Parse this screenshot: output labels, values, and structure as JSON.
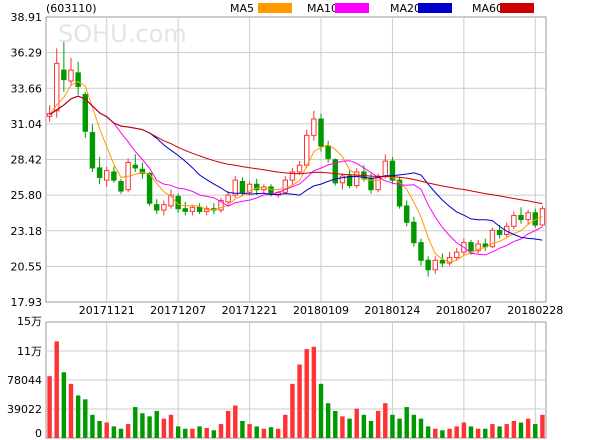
{
  "header": {
    "code_label": "(603110)",
    "watermark": "SOHU.com",
    "legend": [
      {
        "name": "MA5",
        "color": "#ff9900"
      },
      {
        "name": "MA10",
        "color": "#ff00ff"
      },
      {
        "name": "MA20",
        "color": "#0000cc"
      },
      {
        "name": "MA60",
        "color": "#cc0000"
      }
    ]
  },
  "colors": {
    "up": "#ff3333",
    "down": "#009900",
    "grid": "#cccccc",
    "frame": "#999999"
  },
  "chart_data": [
    {
      "type": "candlestick",
      "title": "",
      "yticks": [
        "38.91",
        "36.29",
        "33.66",
        "31.04",
        "28.42",
        "25.80",
        "23.18",
        "20.55",
        "17.93"
      ],
      "ylim": [
        17.93,
        38.91
      ],
      "xticks": [
        "20171121",
        "20171207",
        "20171221",
        "20180109",
        "20180124",
        "20180207",
        "20180228"
      ],
      "xtick_index": [
        8,
        18,
        28,
        38,
        48,
        58,
        68
      ],
      "grid": true,
      "legend_placement": "top-right",
      "candles": [
        [
          31.6,
          32.4,
          31.2,
          31.8
        ],
        [
          32.0,
          36.6,
          31.5,
          35.5
        ],
        [
          35.0,
          37.2,
          33.4,
          34.3
        ],
        [
          34.2,
          35.9,
          33.8,
          35.0
        ],
        [
          34.8,
          35.6,
          33.2,
          33.8
        ],
        [
          33.2,
          33.4,
          30.0,
          30.5
        ],
        [
          30.4,
          31.0,
          27.5,
          27.8
        ],
        [
          27.8,
          28.6,
          26.6,
          27.1
        ],
        [
          26.9,
          27.9,
          26.4,
          27.6
        ],
        [
          27.5,
          27.9,
          26.7,
          26.9
        ],
        [
          26.8,
          27.0,
          25.9,
          26.1
        ],
        [
          26.2,
          28.5,
          26.0,
          28.2
        ],
        [
          28.0,
          28.8,
          27.5,
          27.8
        ],
        [
          27.7,
          28.2,
          27.0,
          27.4
        ],
        [
          27.4,
          27.5,
          25.0,
          25.2
        ],
        [
          25.1,
          25.5,
          24.4,
          24.7
        ],
        [
          24.7,
          25.4,
          24.3,
          25.1
        ],
        [
          25.0,
          26.2,
          24.8,
          25.8
        ],
        [
          25.7,
          25.9,
          24.5,
          24.8
        ],
        [
          24.8,
          25.3,
          24.3,
          24.6
        ],
        [
          24.6,
          25.1,
          24.3,
          24.9
        ],
        [
          24.9,
          25.2,
          24.4,
          24.6
        ],
        [
          24.6,
          25.0,
          24.3,
          24.8
        ],
        [
          24.8,
          25.2,
          24.4,
          24.7
        ],
        [
          24.7,
          25.6,
          24.5,
          25.4
        ],
        [
          25.3,
          26.1,
          25.1,
          25.8
        ],
        [
          25.8,
          27.2,
          25.6,
          26.9
        ],
        [
          26.8,
          27.1,
          25.7,
          26.0
        ],
        [
          26.0,
          26.8,
          25.8,
          26.6
        ],
        [
          26.6,
          27.0,
          25.8,
          26.2
        ],
        [
          26.2,
          26.6,
          25.9,
          26.4
        ],
        [
          26.4,
          26.6,
          25.7,
          25.9
        ],
        [
          25.8,
          26.1,
          25.6,
          26.0
        ],
        [
          26.0,
          27.2,
          25.9,
          26.9
        ],
        [
          26.9,
          27.8,
          26.5,
          27.5
        ],
        [
          27.5,
          28.3,
          27.3,
          28.0
        ],
        [
          28.0,
          30.6,
          27.8,
          30.2
        ],
        [
          30.2,
          32.0,
          29.8,
          31.4
        ],
        [
          31.4,
          31.8,
          29.0,
          29.4
        ],
        [
          29.4,
          29.8,
          28.2,
          28.5
        ],
        [
          28.4,
          28.5,
          26.5,
          26.7
        ],
        [
          26.7,
          27.4,
          26.2,
          27.2
        ],
        [
          27.2,
          27.6,
          26.3,
          26.5
        ],
        [
          26.5,
          27.8,
          26.3,
          27.5
        ],
        [
          27.5,
          28.0,
          26.8,
          27.0
        ],
        [
          27.0,
          27.4,
          25.9,
          26.2
        ],
        [
          26.2,
          27.4,
          26.0,
          27.2
        ],
        [
          27.2,
          28.8,
          27.0,
          28.3
        ],
        [
          28.3,
          28.6,
          26.6,
          26.9
        ],
        [
          26.9,
          27.1,
          24.8,
          25.0
        ],
        [
          25.0,
          25.4,
          23.5,
          23.8
        ],
        [
          23.8,
          24.2,
          22.0,
          22.3
        ],
        [
          22.3,
          22.6,
          20.6,
          21.0
        ],
        [
          21.0,
          21.3,
          19.8,
          20.3
        ],
        [
          20.3,
          21.3,
          20.0,
          21.0
        ],
        [
          21.0,
          21.5,
          20.5,
          20.8
        ],
        [
          20.8,
          21.6,
          20.6,
          21.2
        ],
        [
          21.2,
          21.9,
          21.0,
          21.6
        ],
        [
          21.6,
          22.6,
          21.4,
          22.3
        ],
        [
          22.3,
          22.5,
          21.4,
          21.7
        ],
        [
          21.7,
          22.5,
          21.5,
          22.2
        ],
        [
          22.2,
          22.6,
          21.7,
          22.0
        ],
        [
          22.0,
          23.4,
          21.9,
          23.2
        ],
        [
          23.2,
          23.6,
          22.6,
          22.9
        ],
        [
          22.9,
          23.8,
          22.7,
          23.5
        ],
        [
          23.5,
          24.6,
          23.3,
          24.3
        ],
        [
          24.3,
          24.9,
          23.7,
          24.0
        ],
        [
          24.0,
          24.7,
          23.6,
          24.5
        ],
        [
          24.5,
          24.8,
          23.4,
          23.6
        ],
        [
          23.6,
          25.0,
          23.5,
          24.8
        ]
      ],
      "series": [
        {
          "name": "MA5",
          "values": [
            31.72,
            32.44,
            33.0,
            33.9,
            34.17,
            33.82,
            32.28,
            30.7,
            29.36,
            28.06,
            27.1,
            27.18,
            27.32,
            27.48,
            27.34,
            26.66,
            26.04,
            25.72,
            25.12,
            25.0,
            25.04,
            24.96,
            24.74,
            24.72,
            24.88,
            25.06,
            25.52,
            25.76,
            26.14,
            26.3,
            26.38,
            26.22,
            26.22,
            26.28,
            26.54,
            26.86,
            27.92,
            29.0,
            29.3,
            29.5,
            29.16,
            28.64,
            27.66,
            27.28,
            26.98,
            26.88,
            26.88,
            27.24,
            27.12,
            26.72,
            26.24,
            25.26,
            24.2,
            22.68,
            21.48,
            21.08,
            20.86,
            21.0,
            21.38,
            21.52,
            21.8,
            21.96,
            22.24,
            22.4,
            22.66,
            22.98,
            23.18,
            23.64,
            23.98,
            24.24
          ]
        },
        {
          "name": "MA10",
          "values": [
            31.72,
            32.08,
            32.43,
            32.89,
            33.08,
            32.88,
            32.36,
            31.85,
            31.57,
            31.1,
            30.37,
            29.73,
            29.01,
            28.42,
            27.77,
            26.88,
            26.61,
            26.52,
            26.3,
            26.24,
            26.07,
            25.81,
            25.7,
            25.6,
            25.32,
            24.98,
            25.24,
            25.34,
            25.43,
            25.59,
            25.81,
            25.87,
            25.99,
            26.21,
            26.42,
            26.62,
            27.07,
            27.61,
            27.79,
            28.02,
            28.16,
            28.29,
            28.33,
            28.14,
            27.79,
            27.46,
            27.11,
            26.85,
            26.68,
            26.57,
            26.53,
            26.56,
            26.23,
            25.09,
            24.19,
            23.41,
            22.82,
            22.28,
            21.96,
            21.53,
            21.44,
            21.4,
            21.62,
            21.89,
            22.09,
            22.39,
            22.57,
            22.94,
            23.19,
            23.45
          ]
        },
        {
          "name": "MA20",
          "values": [
            31.72,
            32.08,
            32.43,
            32.89,
            33.08,
            32.88,
            32.36,
            31.85,
            31.57,
            31.1,
            30.88,
            30.81,
            30.72,
            30.62,
            30.37,
            29.98,
            29.49,
            29.1,
            28.72,
            28.29,
            27.82,
            27.28,
            26.93,
            26.61,
            26.32,
            25.99,
            25.93,
            25.93,
            25.87,
            25.91,
            25.94,
            25.84,
            25.85,
            25.91,
            25.87,
            25.8,
            26.16,
            26.48,
            26.61,
            26.81,
            26.99,
            27.08,
            27.16,
            27.17,
            27.11,
            27.04,
            27.09,
            27.23,
            27.23,
            27.29,
            27.35,
            27.43,
            27.29,
            26.61,
            25.99,
            25.43,
            24.96,
            24.56,
            24.32,
            24.05,
            23.99,
            23.98,
            23.92,
            23.49,
            23.14,
            22.9,
            22.69,
            22.61,
            22.57,
            22.49
          ]
        },
        {
          "name": "MA60",
          "values": [
            31.72,
            32.08,
            32.43,
            32.89,
            33.08,
            32.88,
            32.36,
            31.85,
            31.57,
            31.1,
            30.88,
            30.81,
            30.72,
            30.62,
            30.37,
            30.08,
            29.8,
            29.58,
            29.32,
            29.09,
            28.88,
            28.69,
            28.5,
            28.33,
            28.19,
            28.07,
            28.0,
            27.9,
            27.82,
            27.74,
            27.66,
            27.57,
            27.49,
            27.43,
            27.39,
            27.37,
            27.42,
            27.48,
            27.47,
            27.43,
            27.38,
            27.34,
            27.3,
            27.27,
            27.24,
            27.2,
            27.17,
            27.16,
            27.15,
            27.12,
            27.05,
            26.95,
            26.83,
            26.7,
            26.58,
            26.47,
            26.37,
            26.28,
            26.21,
            26.11,
            26.01,
            25.91,
            25.82,
            25.74,
            25.64,
            25.55,
            25.45,
            25.37,
            25.26,
            25.17
          ]
        }
      ]
    },
    {
      "type": "bar",
      "title": "",
      "yticks": [
        "15万",
        "11万",
        "78044",
        "39022",
        "0"
      ],
      "ylim": [
        0,
        150000
      ],
      "values": [
        80000,
        125000,
        85000,
        70000,
        55000,
        50000,
        30000,
        22000,
        20000,
        15000,
        12000,
        18000,
        40000,
        32000,
        28000,
        35000,
        25000,
        30000,
        15000,
        12000,
        12000,
        15000,
        13000,
        10000,
        18000,
        35000,
        42000,
        22000,
        18000,
        15000,
        12000,
        14000,
        12000,
        30000,
        70000,
        95000,
        115000,
        118000,
        70000,
        45000,
        35000,
        28000,
        25000,
        38000,
        30000,
        22000,
        35000,
        45000,
        30000,
        25000,
        40000,
        30000,
        25000,
        15000,
        12000,
        10000,
        12000,
        15000,
        20000,
        15000,
        12000,
        12000,
        18000,
        15000,
        18000,
        22000,
        20000,
        25000,
        18000,
        30000
      ],
      "direction": [
        "up",
        "up",
        "down",
        "up",
        "down",
        "down",
        "down",
        "down",
        "up",
        "down",
        "down",
        "up",
        "down",
        "down",
        "down",
        "down",
        "up",
        "up",
        "down",
        "down",
        "up",
        "down",
        "up",
        "down",
        "up",
        "up",
        "up",
        "down",
        "up",
        "down",
        "up",
        "down",
        "up",
        "up",
        "up",
        "up",
        "up",
        "up",
        "down",
        "down",
        "down",
        "up",
        "down",
        "up",
        "down",
        "down",
        "up",
        "up",
        "down",
        "down",
        "down",
        "down",
        "down",
        "down",
        "up",
        "down",
        "up",
        "up",
        "up",
        "down",
        "up",
        "down",
        "up",
        "down",
        "up",
        "up",
        "down",
        "up",
        "down",
        "up"
      ]
    }
  ]
}
